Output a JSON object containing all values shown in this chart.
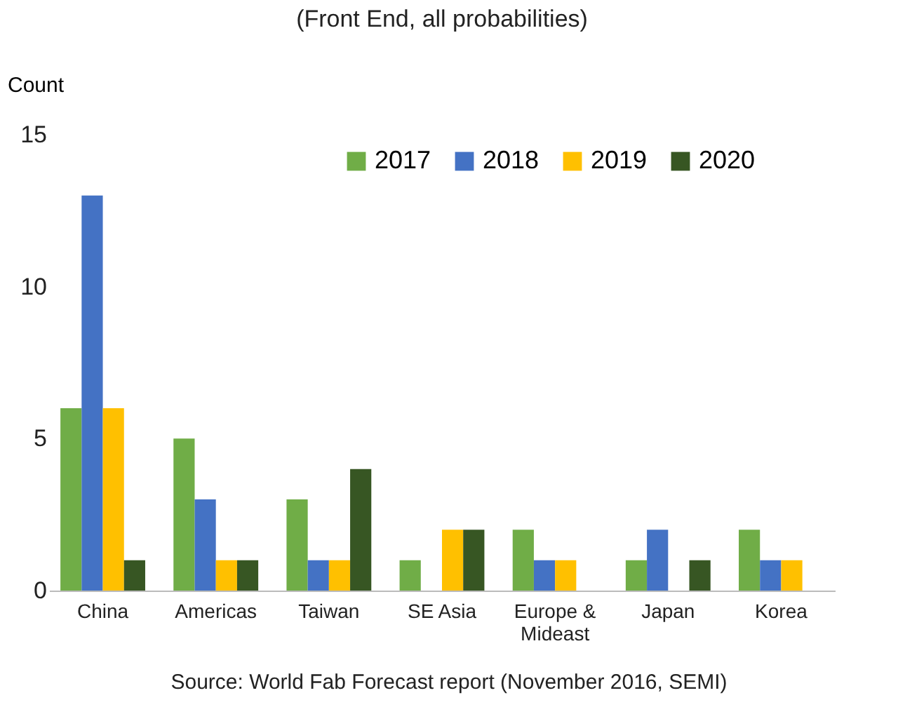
{
  "chart_data": {
    "type": "bar",
    "subtitle": "(Front End, all probabilities)",
    "ylabel": "Count",
    "categories": [
      "China",
      "Americas",
      "Taiwan",
      "SE Asia",
      "Europe & Mideast",
      "Japan",
      "Korea"
    ],
    "series": [
      {
        "name": "2017",
        "color": "#70ad47",
        "values": [
          6,
          5,
          3,
          1,
          2,
          1,
          2
        ]
      },
      {
        "name": "2018",
        "color": "#4472c4",
        "values": [
          13,
          3,
          1,
          0,
          1,
          2,
          1
        ]
      },
      {
        "name": "2019",
        "color": "#ffc000",
        "values": [
          6,
          1,
          1,
          2,
          1,
          0,
          1
        ]
      },
      {
        "name": "2020",
        "color": "#375623",
        "values": [
          1,
          1,
          4,
          2,
          0,
          1,
          0
        ]
      }
    ],
    "ylim": [
      0,
      15
    ],
    "yticks": [
      0,
      5,
      10,
      15
    ],
    "grid": false,
    "legend": "top right",
    "annotations": [
      "Source: World Fab Forecast report (November 2016, SEMI)"
    ]
  }
}
